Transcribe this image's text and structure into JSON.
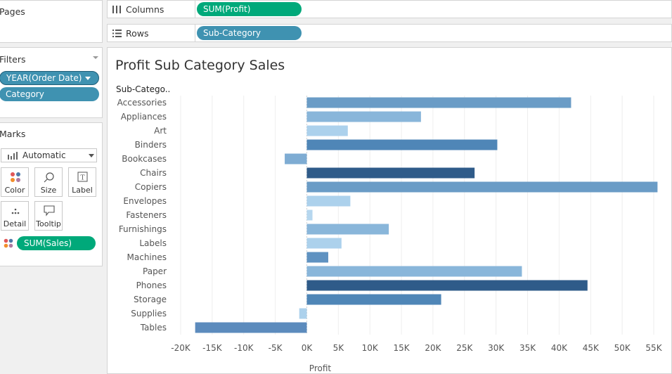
{
  "pages": {
    "title": "Pages"
  },
  "filters": {
    "title": "Filters",
    "items": [
      {
        "label": "YEAR(Order Date)"
      },
      {
        "label": "Category"
      }
    ]
  },
  "marks": {
    "title": "Marks",
    "mark_type": "Automatic",
    "buttons": {
      "color": "Color",
      "size": "Size",
      "label": "Label",
      "detail": "Detail",
      "tooltip": "Tooltip"
    },
    "color_field": "SUM(Sales)"
  },
  "shelves": {
    "columns": {
      "label": "Columns",
      "pill": "SUM(Profit)"
    },
    "rows": {
      "label": "Rows",
      "pill": "Sub-Category"
    }
  },
  "sheet": {
    "title": "Profit Sub Category Sales",
    "row_header": "Sub-Catego.."
  },
  "chart_data": {
    "type": "bar",
    "orientation": "horizontal",
    "title": "Profit Sub Category Sales",
    "xlabel": "Profit",
    "ylabel": "Sub-Catego..",
    "xlim": [
      -20000,
      55000
    ],
    "xticks": [
      "-20K",
      "-15K",
      "-10K",
      "-5K",
      "0K",
      "5K",
      "10K",
      "15K",
      "20K",
      "25K",
      "30K",
      "35K",
      "40K",
      "45K",
      "50K",
      "55K"
    ],
    "grid": true,
    "color_encoding": "SUM(Sales)",
    "categories": [
      "Accessories",
      "Appliances",
      "Art",
      "Binders",
      "Bookcases",
      "Chairs",
      "Copiers",
      "Envelopes",
      "Fasteners",
      "Furnishings",
      "Labels",
      "Machines",
      "Paper",
      "Phones",
      "Storage",
      "Supplies",
      "Tables"
    ],
    "values": [
      41900,
      18100,
      6500,
      30200,
      -3500,
      26600,
      55600,
      6900,
      900,
      13000,
      5500,
      3400,
      34100,
      44500,
      21300,
      -1200,
      -17700
    ],
    "colors": [
      "#6a9cc6",
      "#89b6da",
      "#acd1ec",
      "#4f86b7",
      "#7eacd3",
      "#2f5b89",
      "#6a9cc6",
      "#acd1ec",
      "#b6d7ef",
      "#89b6da",
      "#acd1ec",
      "#5f92c1",
      "#89b6da",
      "#2f5b89",
      "#4f86b7",
      "#acd1ec",
      "#5c8bbd"
    ]
  }
}
